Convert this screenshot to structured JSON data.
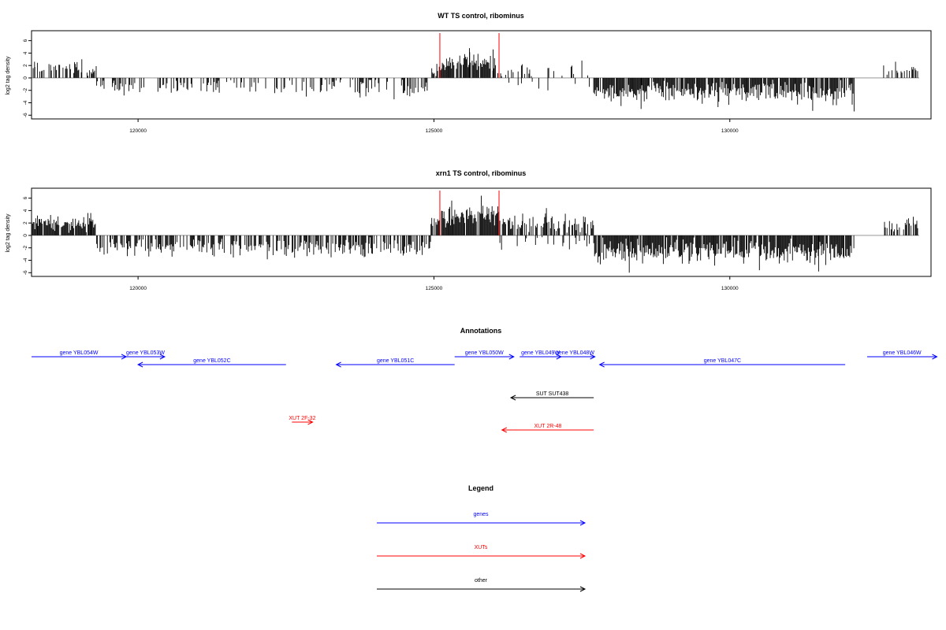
{
  "chart_data": [
    {
      "type": "bar",
      "title": "WT TS control, ribominus",
      "ylabel": "log2 tag density",
      "xlim": [
        118200,
        133400
      ],
      "ylim": [
        -6.6,
        7.6
      ],
      "x_ticks": [
        120000,
        125000,
        130000
      ],
      "x_tick_labels": [
        "120000",
        "125000",
        "130000"
      ],
      "y_ticks": [
        -6,
        -4,
        -2,
        0,
        2,
        4,
        6
      ],
      "y_tick_labels": [
        "-6",
        "-4",
        "-2",
        "0",
        "2",
        "4",
        "6"
      ],
      "marker_lines": [
        125100,
        126100
      ],
      "marker_color": "#ff0000",
      "baseline_extent": [
        118200,
        133200
      ],
      "segments": [
        {
          "x": [
            118200,
            119300
          ],
          "sign": 1,
          "density": 0.45,
          "mean": 1.4,
          "spread": 0.9
        },
        {
          "x": [
            119300,
            124950
          ],
          "sign": -1,
          "density": 0.35,
          "mean": -1.6,
          "spread": 1.1
        },
        {
          "x": [
            124950,
            125100
          ],
          "sign": 1,
          "density": 0.6,
          "mean": 1.2,
          "spread": 0.8
        },
        {
          "x": [
            125100,
            126100
          ],
          "sign": 1,
          "density": 0.75,
          "mean": 2.4,
          "spread": 1.2
        },
        {
          "x": [
            126100,
            127700
          ],
          "sign": 1,
          "density": 0.18,
          "mean": 1.0,
          "spread": 0.9
        },
        {
          "x": [
            126100,
            127700
          ],
          "sign": -1,
          "density": 0.1,
          "mean": -1.2,
          "spread": 0.8
        },
        {
          "x": [
            127700,
            132100
          ],
          "sign": -1,
          "density": 0.85,
          "mean": -2.2,
          "spread": 1.2
        },
        {
          "x": [
            132600,
            133200
          ],
          "sign": 1,
          "density": 0.4,
          "mean": 1.2,
          "spread": 0.7
        }
      ],
      "peaks": [
        [
          118250,
          2.6
        ],
        [
          119050,
          3.0
        ],
        [
          125600,
          4.8
        ],
        [
          126000,
          4.6
        ],
        [
          127500,
          2.8
        ],
        [
          128500,
          -5.0
        ],
        [
          129800,
          -4.7
        ],
        [
          131400,
          -5.3
        ],
        [
          132100,
          -5.4
        ],
        [
          132800,
          2.6
        ]
      ]
    },
    {
      "type": "bar",
      "title": "xrn1 TS control, ribominus",
      "ylabel": "log2 tag density",
      "xlim": [
        118200,
        133400
      ],
      "ylim": [
        -6.6,
        7.6
      ],
      "x_ticks": [
        120000,
        125000,
        130000
      ],
      "x_tick_labels": [
        "120000",
        "125000",
        "130000"
      ],
      "y_ticks": [
        -6,
        -4,
        -2,
        0,
        2,
        4,
        6
      ],
      "y_tick_labels": [
        "-6",
        "-4",
        "-2",
        "0",
        "2",
        "4",
        "6"
      ],
      "marker_lines": [
        125100,
        126100
      ],
      "marker_color": "#ff0000",
      "baseline_extent": [
        118200,
        133200
      ],
      "segments": [
        {
          "x": [
            118200,
            119300
          ],
          "sign": 1,
          "density": 0.85,
          "mean": 2.0,
          "spread": 0.9
        },
        {
          "x": [
            119300,
            124950
          ],
          "sign": -1,
          "density": 0.6,
          "mean": -2.0,
          "spread": 1.1
        },
        {
          "x": [
            124950,
            125100
          ],
          "sign": 1,
          "density": 0.7,
          "mean": 2.0,
          "spread": 1.0
        },
        {
          "x": [
            125100,
            126100
          ],
          "sign": 1,
          "density": 0.9,
          "mean": 3.0,
          "spread": 1.3
        },
        {
          "x": [
            126100,
            127700
          ],
          "sign": 1,
          "density": 0.6,
          "mean": 2.0,
          "spread": 1.1
        },
        {
          "x": [
            126100,
            127700
          ],
          "sign": -1,
          "density": 0.2,
          "mean": -1.4,
          "spread": 0.9
        },
        {
          "x": [
            127700,
            132100
          ],
          "sign": -1,
          "density": 0.9,
          "mean": -2.6,
          "spread": 1.3
        },
        {
          "x": [
            132600,
            133200
          ],
          "sign": 1,
          "density": 0.5,
          "mean": 1.5,
          "spread": 0.8
        }
      ],
      "peaks": [
        [
          118300,
          3.2
        ],
        [
          119200,
          3.6
        ],
        [
          125300,
          5.6
        ],
        [
          125800,
          6.4
        ],
        [
          126500,
          3.5
        ],
        [
          126900,
          4.4
        ],
        [
          128300,
          -6.0
        ],
        [
          130500,
          -5.6
        ],
        [
          131500,
          -5.8
        ],
        [
          133100,
          3.0
        ]
      ]
    }
  ],
  "annotations": {
    "title": "Annotations",
    "x_domain": [
      118200,
      133400
    ],
    "items": [
      {
        "label": "gene YBL054W",
        "start": 118200,
        "end": 119800,
        "dir": 1,
        "row": 0,
        "color": "#0000ff"
      },
      {
        "label": "gene YBL053W",
        "start": 119800,
        "end": 120450,
        "dir": 1,
        "row": 0,
        "color": "#0000ff"
      },
      {
        "label": "gene YBL052C",
        "start": 120000,
        "end": 122500,
        "dir": -1,
        "row": 1,
        "color": "#0000ff"
      },
      {
        "label": "gene YBL051C",
        "start": 123350,
        "end": 125350,
        "dir": -1,
        "row": 1,
        "color": "#0000ff"
      },
      {
        "label": "gene YBL050W",
        "start": 125350,
        "end": 126350,
        "dir": 1,
        "row": 0,
        "color": "#0000ff"
      },
      {
        "label": "gene YBL049W",
        "start": 126450,
        "end": 127150,
        "dir": 1,
        "row": 0,
        "color": "#0000ff"
      },
      {
        "label": "gene YBL048W",
        "start": 127050,
        "end": 127720,
        "dir": 1,
        "row": 0,
        "color": "#0000ff"
      },
      {
        "label": "gene YBL047C",
        "start": 127800,
        "end": 131950,
        "dir": -1,
        "row": 1,
        "color": "#0000ff"
      },
      {
        "label": "gene YBL046W",
        "start": 132320,
        "end": 133500,
        "dir": 1,
        "row": 0,
        "color": "#0000ff"
      },
      {
        "label": "SUT SUT438",
        "start": 126300,
        "end": 127700,
        "dir": -1,
        "row": 2,
        "color": "#000000"
      },
      {
        "label": "XUT 2F-32",
        "start": 122600,
        "end": 122950,
        "dir": 1,
        "row": 3,
        "color": "#ff0000"
      },
      {
        "label": "XUT 2R-48",
        "start": 126150,
        "end": 127700,
        "dir": -1,
        "row": 4,
        "color": "#ff0000"
      }
    ]
  },
  "legend": {
    "title": "Legend",
    "items": [
      {
        "label": "genes",
        "color": "#0000ff"
      },
      {
        "label": "XUTs",
        "color": "#ff0000"
      },
      {
        "label": "other",
        "color": "#000000"
      }
    ]
  }
}
